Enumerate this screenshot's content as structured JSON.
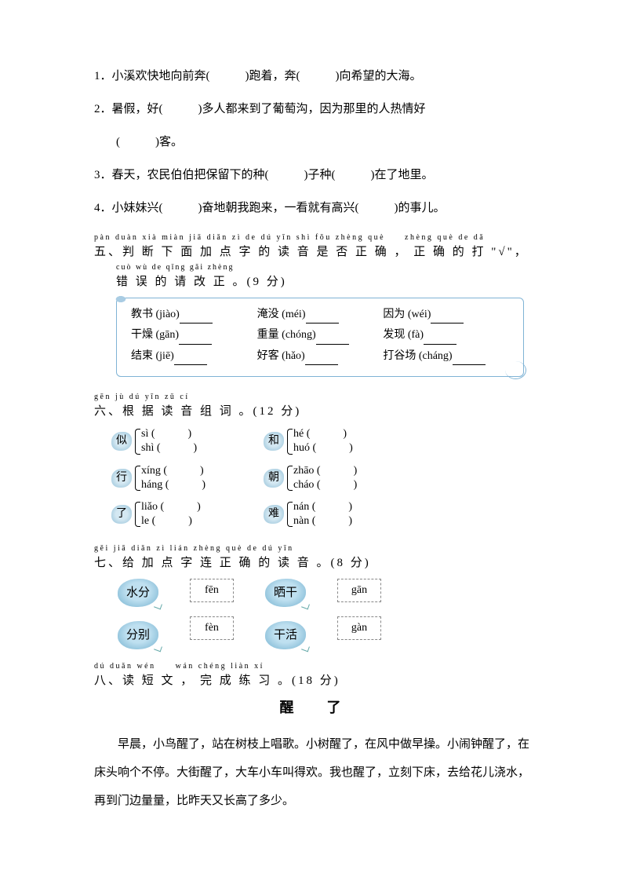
{
  "q1": "1．小溪欢快地向前奔(　　　)跑着，奔(　　　)向希望的大海。",
  "q2a": "2．暑假，好(　　　)多人都来到了葡萄沟，因为那里的人热情好",
  "q2b": "(　　　)客。",
  "q3": "3．春天，农民伯伯把保留下的种(　　　)子种(　　　)在了地里。",
  "q4": "4．小妹妹兴(　　　)奋地朝我跑来，一看就有高兴(　　　)的事儿。",
  "s5": {
    "pinyin1": "pàn duàn xià miàn jiā diǎn zì de dú yīn shì fǒu zhèng què　　zhèng què de dǎ",
    "hanzi1": "五、判 断 下 面 加 点 字 的 读 音 是 否 正 确 ， 正 确 的 打 \"√\"，",
    "pinyin2": "cuò wù de qǐng gǎi zhèng",
    "hanzi2": "错 误 的 请 改 正 。(9 分)",
    "rows": [
      [
        {
          "t": "教书 (jiào)"
        },
        {
          "t": "淹没 (méi)"
        },
        {
          "t": "因为 (wéi)"
        }
      ],
      [
        {
          "t": "干燥 (gān)"
        },
        {
          "t": "重量 (chóng)"
        },
        {
          "t": "发现 (fà)"
        }
      ],
      [
        {
          "t": "结束 (jiē)"
        },
        {
          "t": "好客 (hǎo)"
        },
        {
          "t": "打谷场 (cháng)"
        }
      ]
    ]
  },
  "s6": {
    "pinyin": "gēn jù dú yīn zǔ cí",
    "hanzi": "六、根 据 读 音 组 词 。(12 分)",
    "groups": [
      {
        "char": "似",
        "a": "sì (　　　)",
        "b": "shì (　　　)"
      },
      {
        "char": "和",
        "a": "hé (　　　)",
        "b": "huó (　　　)"
      },
      {
        "char": "行",
        "a": "xíng (　　　)",
        "b": "háng (　　　)"
      },
      {
        "char": "朝",
        "a": "zhāo (　　　)",
        "b": "cháo (　　　)"
      },
      {
        "char": "了",
        "a": "liǎo (　　　)",
        "b": "le (　　　)"
      },
      {
        "char": "难",
        "a": "nán (　　　)",
        "b": "nàn (　　　)"
      }
    ]
  },
  "s7": {
    "pinyin": "gěi jiā diǎn zì lián zhèng què de dú yīn",
    "hanzi": "七、给 加 点 字 连 正 确 的 读 音 。(8 分)",
    "left": [
      {
        "word": "水分",
        "p1": "fēn"
      },
      {
        "word": "分别",
        "p1": "fèn"
      }
    ],
    "right": [
      {
        "word": "晒干",
        "p1": "gān"
      },
      {
        "word": "干活",
        "p1": "gàn"
      }
    ]
  },
  "s8": {
    "pinyin": "dú duǎn wén　　wán chéng liàn xí",
    "hanzi": "八、读 短 文 ， 完 成 练 习 。(18 分)",
    "title": "醒　了",
    "para": "早晨，小鸟醒了，站在树枝上唱歌。小树醒了，在风中做早操。小闹钟醒了，在床头响个不停。大街醒了，大车小车叫得欢。我也醒了，立刻下床，去给花儿浇水，再到门边量量，比昨天又长高了多少。"
  }
}
